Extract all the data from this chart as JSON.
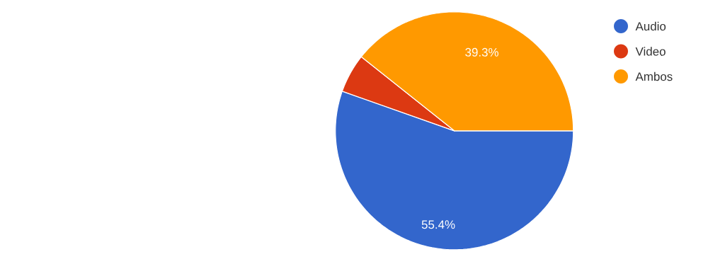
{
  "chart_data": {
    "type": "pie",
    "categories": [
      "Audio",
      "Video",
      "Ambos"
    ],
    "values": [
      55.4,
      5.3,
      39.3
    ],
    "colors": [
      "#3366cc",
      "#dc3912",
      "#ff9900"
    ],
    "value_labels": [
      "55.4%",
      null,
      "39.3%"
    ],
    "legend": "right"
  }
}
